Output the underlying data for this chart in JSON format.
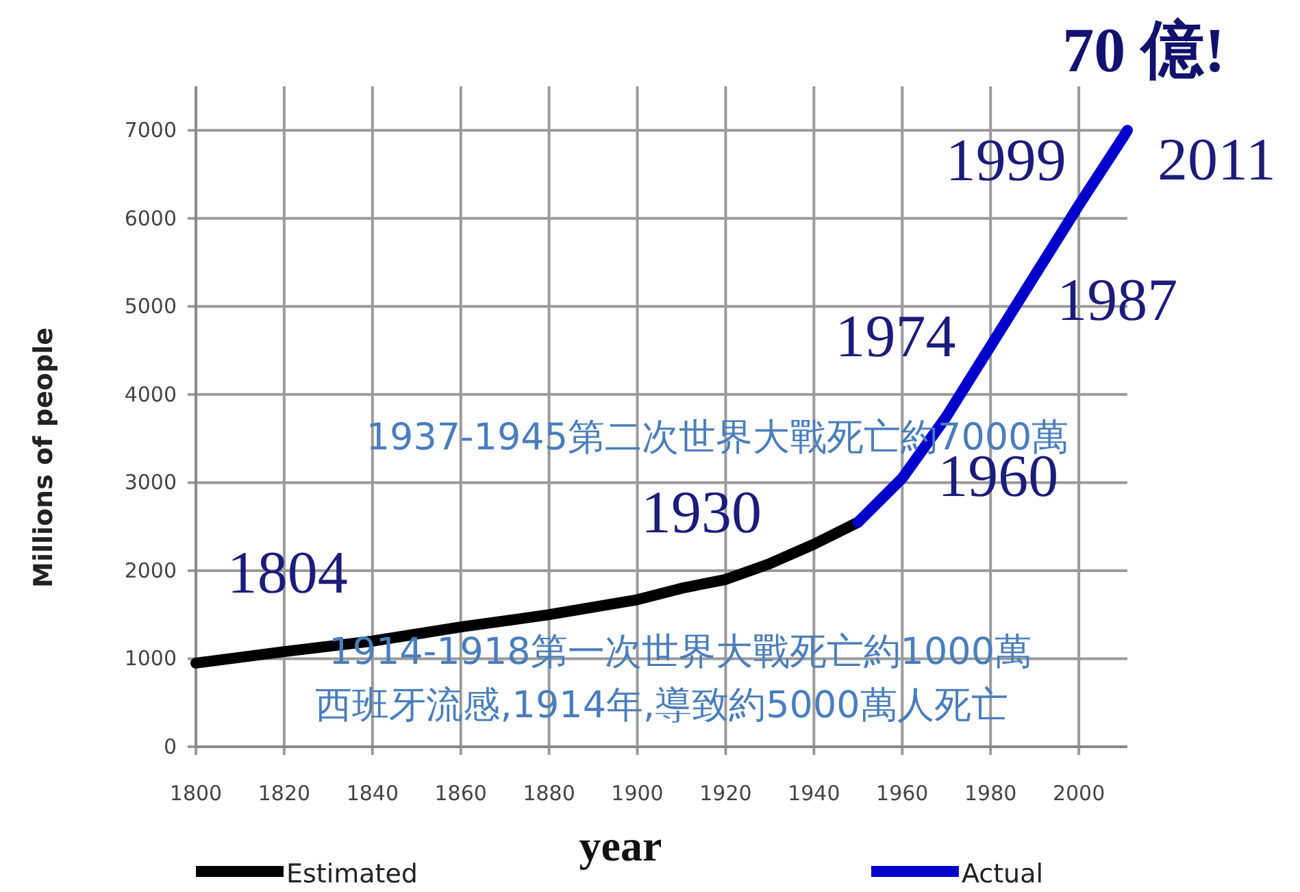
{
  "chart_data": {
    "type": "line",
    "title": "70 億!",
    "xlabel": "year",
    "ylabel": "Millions of people",
    "xlim": [
      1800,
      2011
    ],
    "ylim": [
      0,
      7500
    ],
    "xticks": [
      1800,
      1820,
      1840,
      1860,
      1880,
      1900,
      1920,
      1940,
      1960,
      1980,
      2000
    ],
    "yticks": [
      0,
      1000,
      2000,
      3000,
      4000,
      5000,
      6000,
      7000
    ],
    "grid": true,
    "legend": "bottom",
    "marker": "none",
    "line_style": "solid",
    "series": [
      {
        "name": "Estimated",
        "color": "#000000",
        "x": [
          1800,
          1820,
          1840,
          1860,
          1880,
          1900,
          1910,
          1920,
          1930,
          1940,
          1950
        ],
        "values": [
          950,
          1080,
          1200,
          1360,
          1500,
          1670,
          1800,
          1900,
          2080,
          2300,
          2550
        ]
      },
      {
        "name": "Actual",
        "color": "#0000cc",
        "x": [
          1950,
          1960,
          1970,
          1980,
          1990,
          2000,
          2010,
          2011
        ],
        "values": [
          2550,
          3050,
          3750,
          4550,
          5350,
          6150,
          6920,
          7000
        ]
      }
    ],
    "annotations": [
      {
        "text": "1804",
        "x": 1804,
        "y": 1000
      },
      {
        "text": "1930",
        "x": 1930,
        "y": 2000
      },
      {
        "text": "1960",
        "x": 1960,
        "y": 3000
      },
      {
        "text": "1974",
        "x": 1974,
        "y": 4000
      },
      {
        "text": "1987",
        "x": 1987,
        "y": 5000
      },
      {
        "text": "1999",
        "x": 1999,
        "y": 6000
      },
      {
        "text": "2011",
        "x": 2011,
        "y": 7000
      },
      "1937-1945第二次世界大戰死亡約7000萬",
      "1914-1918第一次世界大戰死亡約1000萬",
      "西班牙流感,1914年,導致約5000萬人死亡"
    ]
  }
}
